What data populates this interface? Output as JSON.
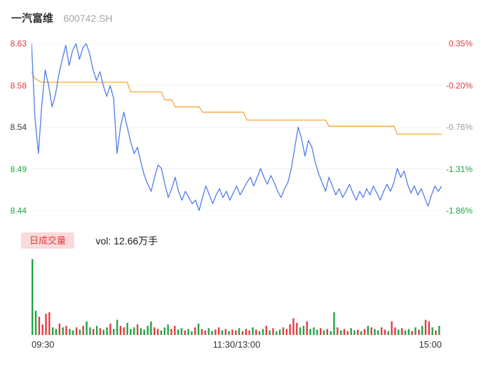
{
  "header": {
    "name": "一汽富维",
    "code": "600742.SH"
  },
  "volume_panel": {
    "tab_label": "日成交量",
    "volume_text": "vol: 12.66万手"
  },
  "colors": {
    "up": "#e8393c",
    "down": "#1fa443",
    "price_line": "#4f7de8",
    "avg_line": "#f6a733",
    "pill_bg": "#fbdada",
    "grid": "#efefef"
  },
  "chart_data": [
    {
      "type": "line",
      "title": "一汽富维 600742.SH 分时走势",
      "x_labels": [
        "09:30",
        "11:30/13:00",
        "15:00"
      ],
      "y_left_ticks": [
        "8.63",
        "8.58",
        "8.54",
        "8.49",
        "8.44"
      ],
      "y_right_ticks": [
        "0.35%",
        "-0.20%",
        "-0.76%",
        "-1.31%",
        "-1.86%"
      ],
      "ylim": [
        8.44,
        8.63
      ],
      "grid": true,
      "series": [
        {
          "name": "price",
          "color": "#4f7de8",
          "values": [
            8.63,
            8.545,
            8.505,
            8.56,
            8.6,
            8.582,
            8.558,
            8.572,
            8.595,
            8.612,
            8.628,
            8.605,
            8.622,
            8.63,
            8.612,
            8.625,
            8.63,
            8.618,
            8.6,
            8.588,
            8.598,
            8.582,
            8.57,
            8.582,
            8.568,
            8.505,
            8.535,
            8.552,
            8.535,
            8.518,
            8.505,
            8.512,
            8.495,
            8.48,
            8.47,
            8.462,
            8.478,
            8.492,
            8.488,
            8.47,
            8.455,
            8.465,
            8.478,
            8.462,
            8.452,
            8.462,
            8.455,
            8.448,
            8.452,
            8.44,
            8.455,
            8.468,
            8.458,
            8.448,
            8.458,
            8.465,
            8.455,
            8.462,
            8.452,
            8.46,
            8.468,
            8.458,
            8.465,
            8.472,
            8.478,
            8.468,
            8.478,
            8.488,
            8.478,
            8.47,
            8.48,
            8.472,
            8.462,
            8.455,
            8.465,
            8.472,
            8.488,
            8.512,
            8.535,
            8.522,
            8.502,
            8.52,
            8.512,
            8.495,
            8.482,
            8.472,
            8.462,
            8.478,
            8.468,
            8.458,
            8.465,
            8.455,
            8.462,
            8.47,
            8.46,
            8.452,
            8.462,
            8.455,
            8.465,
            8.458,
            8.468,
            8.46,
            8.452,
            8.462,
            8.47,
            8.462,
            8.472,
            8.488,
            8.478,
            8.485,
            8.47,
            8.46,
            8.468,
            8.458,
            8.465,
            8.455,
            8.445,
            8.458,
            8.468,
            8.462,
            8.468
          ]
        },
        {
          "name": "avg",
          "color": "#f6a733",
          "values": [
            8.598,
            8.59,
            8.588,
            8.586,
            8.586,
            8.586,
            8.586,
            8.586,
            8.586,
            8.586,
            8.586,
            8.586,
            8.586,
            8.586,
            8.586,
            8.586,
            8.586,
            8.586,
            8.586,
            8.586,
            8.586,
            8.586,
            8.586,
            8.586,
            8.586,
            8.586,
            8.586,
            8.586,
            8.586,
            8.575,
            8.575,
            8.575,
            8.575,
            8.575,
            8.575,
            8.575,
            8.575,
            8.575,
            8.575,
            8.566,
            8.566,
            8.566,
            8.558,
            8.558,
            8.558,
            8.558,
            8.558,
            8.558,
            8.558,
            8.558,
            8.552,
            8.552,
            8.552,
            8.552,
            8.552,
            8.552,
            8.552,
            8.552,
            8.552,
            8.552,
            8.552,
            8.552,
            8.552,
            8.543,
            8.543,
            8.543,
            8.543,
            8.543,
            8.543,
            8.543,
            8.543,
            8.543,
            8.543,
            8.543,
            8.543,
            8.543,
            8.543,
            8.543,
            8.543,
            8.543,
            8.543,
            8.543,
            8.543,
            8.543,
            8.543,
            8.543,
            8.543,
            8.536,
            8.536,
            8.536,
            8.536,
            8.536,
            8.536,
            8.536,
            8.536,
            8.536,
            8.536,
            8.536,
            8.536,
            8.536,
            8.536,
            8.536,
            8.536,
            8.536,
            8.536,
            8.536,
            8.536,
            8.527,
            8.527,
            8.527,
            8.527,
            8.527,
            8.527,
            8.527,
            8.527,
            8.527,
            8.527,
            8.527,
            8.527,
            8.527,
            8.527
          ]
        }
      ]
    },
    {
      "type": "bar",
      "name": "volume",
      "total_label": "vol: 12.66万手",
      "ylim": [
        0,
        1
      ],
      "unit": "relative",
      "values": [
        1.0,
        0.32,
        0.24,
        0.14,
        0.28,
        0.3,
        0.1,
        0.08,
        0.15,
        0.1,
        0.12,
        0.08,
        0.06,
        0.1,
        0.07,
        0.12,
        0.18,
        0.1,
        0.08,
        0.12,
        0.09,
        0.07,
        0.1,
        0.15,
        0.08,
        0.2,
        0.12,
        0.1,
        0.16,
        0.08,
        0.1,
        0.14,
        0.09,
        0.07,
        0.12,
        0.18,
        0.1,
        0.08,
        0.06,
        0.1,
        0.14,
        0.08,
        0.12,
        0.07,
        0.09,
        0.06,
        0.08,
        0.05,
        0.1,
        0.15,
        0.08,
        0.06,
        0.09,
        0.05,
        0.07,
        0.1,
        0.06,
        0.08,
        0.05,
        0.07,
        0.06,
        0.09,
        0.05,
        0.08,
        0.06,
        0.1,
        0.07,
        0.05,
        0.08,
        0.12,
        0.06,
        0.09,
        0.05,
        0.07,
        0.1,
        0.08,
        0.14,
        0.22,
        0.16,
        0.1,
        0.12,
        0.18,
        0.08,
        0.1,
        0.07,
        0.09,
        0.06,
        0.08,
        0.05,
        0.3,
        0.1,
        0.06,
        0.08,
        0.05,
        0.09,
        0.06,
        0.07,
        0.05,
        0.08,
        0.12,
        0.1,
        0.08,
        0.06,
        0.1,
        0.07,
        0.05,
        0.18,
        0.1,
        0.07,
        0.09,
        0.06,
        0.08,
        0.05,
        0.1,
        0.07,
        0.12,
        0.2,
        0.18,
        0.1,
        0.06,
        0.12
      ],
      "directions": "ggrrrrggrgrggrgrggrgrggrggrrgggrggggrrgggrrggrggrgrrggrrgrgrrgrrrgrggrgrggrrrrrggrgggrgrggrgrrggrgrgrggrrgrrgrggrgrgrrgrg"
    }
  ]
}
